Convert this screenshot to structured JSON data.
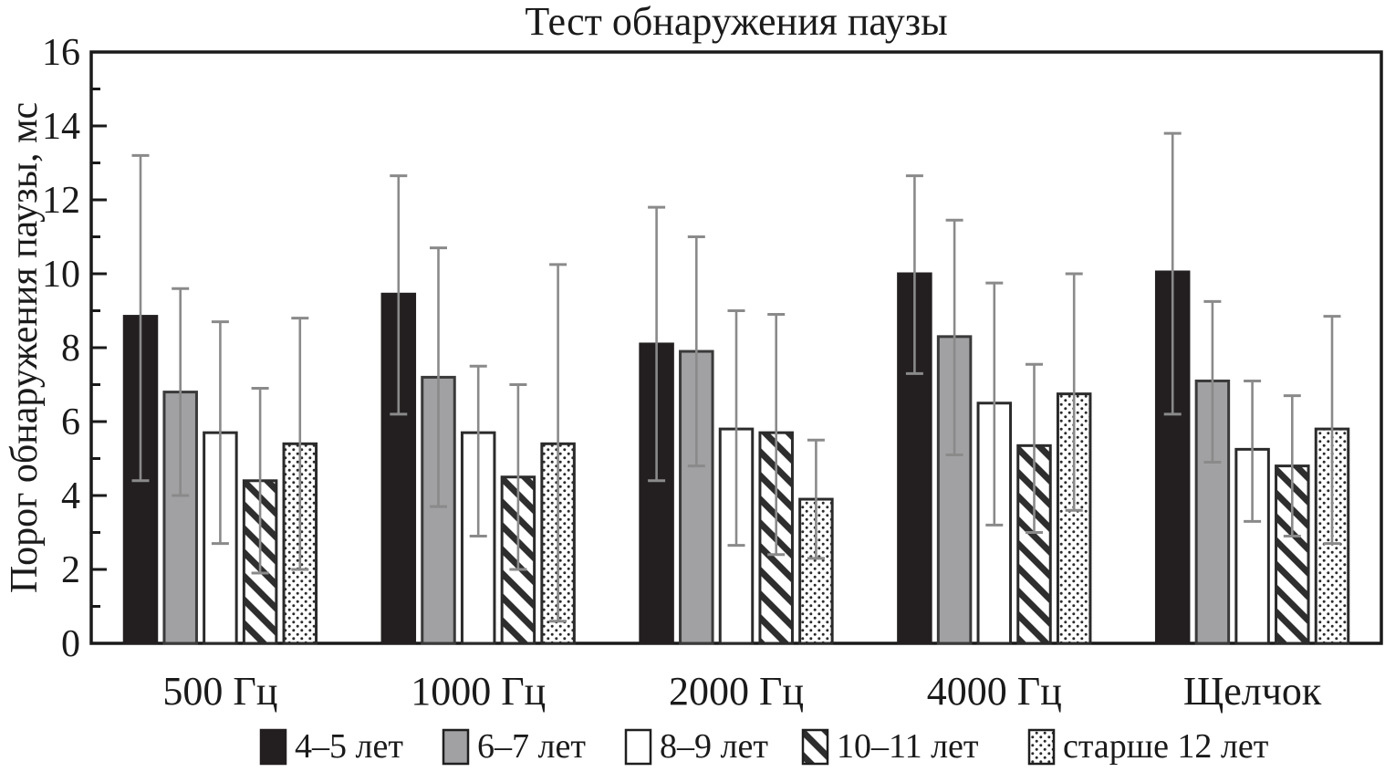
{
  "title": "Тест обнаружения паузы",
  "chart_data": {
    "type": "bar",
    "title": "Тест обнаружения паузы",
    "ylabel": "Порог обнаружения паузы, мс",
    "xlabel": "",
    "ylim": [
      0,
      16
    ],
    "ytick_major_step": 2,
    "ytick_minor_step": 1,
    "grid": false,
    "legend_position": "bottom",
    "error_bars": true,
    "categories": [
      "500 Гц",
      "1000 Гц",
      "2000 Гц",
      "4000 Гц",
      "Щелчок"
    ],
    "series": [
      {
        "name": "4–5 лет",
        "pattern": "solid-black",
        "values": [
          8.85,
          9.45,
          8.1,
          10.0,
          10.05
        ],
        "err_low": [
          4.4,
          6.2,
          4.4,
          7.3,
          6.2
        ],
        "err_high": [
          13.2,
          12.65,
          11.8,
          12.65,
          13.8
        ]
      },
      {
        "name": "6–7 лет",
        "pattern": "solid-gray",
        "values": [
          6.8,
          7.2,
          7.9,
          8.3,
          7.1
        ],
        "err_low": [
          4.0,
          3.7,
          4.8,
          5.1,
          4.9
        ],
        "err_high": [
          9.6,
          10.7,
          11.0,
          11.45,
          9.25
        ]
      },
      {
        "name": "8–9 лет",
        "pattern": "plain-white",
        "values": [
          5.7,
          5.7,
          5.8,
          6.5,
          5.25
        ],
        "err_low": [
          2.7,
          2.9,
          2.65,
          3.2,
          3.3
        ],
        "err_high": [
          8.7,
          7.5,
          9.0,
          9.75,
          7.1
        ]
      },
      {
        "name": "10–11 лет",
        "pattern": "diagonal-hatch",
        "values": [
          4.4,
          4.5,
          5.7,
          5.35,
          4.8
        ],
        "err_low": [
          1.9,
          2.0,
          2.4,
          3.0,
          2.9
        ],
        "err_high": [
          6.9,
          7.0,
          8.9,
          7.55,
          6.7
        ]
      },
      {
        "name": "старше 12 лет",
        "pattern": "dots",
        "values": [
          5.4,
          5.4,
          3.9,
          6.75,
          5.8
        ],
        "err_low": [
          2.0,
          0.6,
          2.3,
          3.6,
          2.7
        ],
        "err_high": [
          8.8,
          10.25,
          5.5,
          10.0,
          8.85
        ]
      }
    ],
    "colors": {
      "black_fill": "#231f20",
      "gray_fill": "#a1a1a3",
      "white_fill": "#ffffff",
      "outline": "#2b2b2b",
      "error_bar": "#8a8a8a",
      "axis": "#1a1a1a"
    }
  }
}
